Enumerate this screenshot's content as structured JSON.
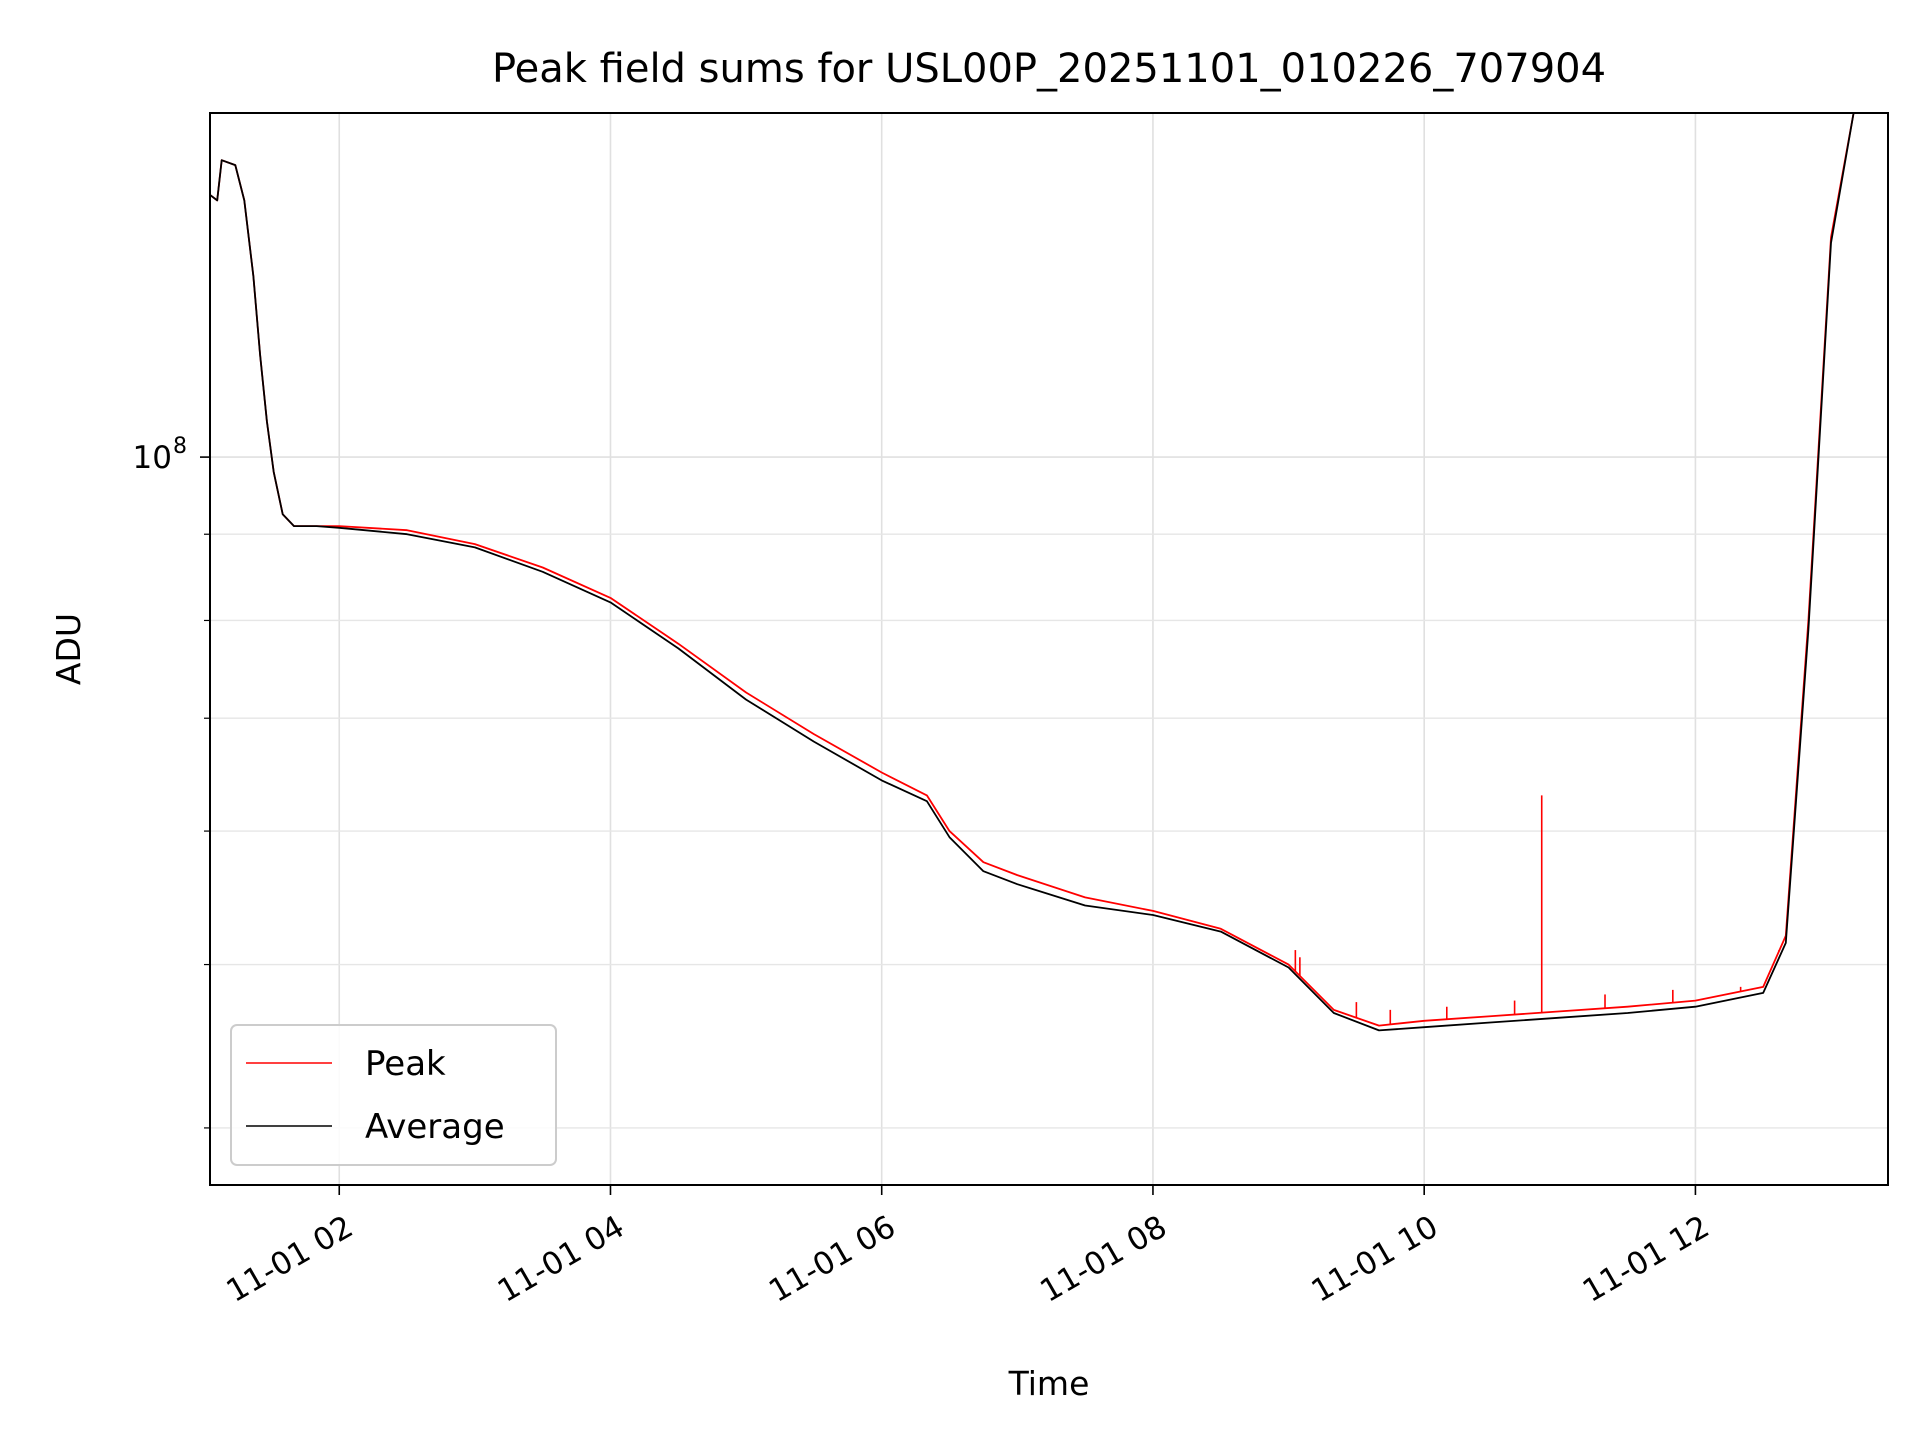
{
  "chart_data": {
    "type": "line",
    "title": "Peak field sums for USL00P_20251101_010226_707904",
    "xlabel": "Time",
    "ylabel": "ADU",
    "x_tick_labels": [
      "11-01 02",
      "11-01 04",
      "11-01 06",
      "11-01 08",
      "11-01 10",
      "11-01 12"
    ],
    "y_tick_label": {
      "base": "10",
      "exponent": "8"
    },
    "yscale": "log",
    "ylim": [
      37000000,
      160000000
    ],
    "grid": true,
    "legend_location": "lower-left",
    "series": [
      {
        "name": "Peak",
        "color": "#ff0000",
        "points": [
          [
            "11-01 01:03",
            143000000
          ],
          [
            "11-01 01:06",
            142000000
          ],
          [
            "11-01 01:08",
            150000000
          ],
          [
            "11-01 01:14",
            149000000
          ],
          [
            "11-01 01:18",
            142000000
          ],
          [
            "11-01 01:22",
            128000000
          ],
          [
            "11-01 01:25",
            115000000
          ],
          [
            "11-01 01:28",
            105000000
          ],
          [
            "11-01 01:31",
            98000000
          ],
          [
            "11-01 01:35",
            92500000
          ],
          [
            "11-01 01:40",
            91000000
          ],
          [
            "11-01 01:50",
            91000000
          ],
          [
            "11-01 02:00",
            91000000
          ],
          [
            "11-01 02:30",
            90500000
          ],
          [
            "11-01 03:00",
            88800000
          ],
          [
            "11-01 03:30",
            86000000
          ],
          [
            "11-01 04:00",
            82500000
          ],
          [
            "11-01 04:30",
            77500000
          ],
          [
            "11-01 05:00",
            72500000
          ],
          [
            "11-01 05:30",
            68500000
          ],
          [
            "11-01 06:00",
            65000000
          ],
          [
            "11-01 06:20",
            63000000
          ],
          [
            "11-01 06:30",
            60000000
          ],
          [
            "11-01 06:45",
            57500000
          ],
          [
            "11-01 07:00",
            56500000
          ],
          [
            "11-01 07:30",
            54800000
          ],
          [
            "11-01 08:00",
            53800000
          ],
          [
            "11-01 08:30",
            52500000
          ],
          [
            "11-01 09:00",
            50000000
          ],
          [
            "11-01 09:20",
            47000000
          ],
          [
            "11-01 09:40",
            46000000
          ],
          [
            "11-01 10:00",
            46300000
          ],
          [
            "11-01 10:30",
            46600000
          ],
          [
            "11-01 11:00",
            46900000
          ],
          [
            "11-01 11:30",
            47200000
          ],
          [
            "11-01 12:00",
            47600000
          ],
          [
            "11-01 12:30",
            48500000
          ],
          [
            "11-01 12:40",
            52000000
          ],
          [
            "11-01 12:50",
            80000000
          ],
          [
            "11-01 13:00",
            135000000
          ],
          [
            "11-01 13:10",
            160000000
          ]
        ],
        "spikes": [
          [
            "11-01 09:03",
            51000000
          ],
          [
            "11-01 09:05",
            50500000
          ],
          [
            "11-01 09:30",
            47500000
          ],
          [
            "11-01 09:45",
            47000000
          ],
          [
            "11-01 10:10",
            47200000
          ],
          [
            "11-01 10:40",
            47600000
          ],
          [
            "11-01 10:52",
            63000000
          ],
          [
            "11-01 11:20",
            48000000
          ],
          [
            "11-01 11:50",
            48300000
          ],
          [
            "11-01 12:20",
            48500000
          ],
          [
            "11-01 12:37",
            51000000
          ]
        ]
      },
      {
        "name": "Average",
        "color": "#000000",
        "points": [
          [
            "11-01 01:03",
            143000000
          ],
          [
            "11-01 01:06",
            142000000
          ],
          [
            "11-01 01:08",
            150000000
          ],
          [
            "11-01 01:14",
            149000000
          ],
          [
            "11-01 01:18",
            142000000
          ],
          [
            "11-01 01:22",
            128000000
          ],
          [
            "11-01 01:25",
            115000000
          ],
          [
            "11-01 01:28",
            105000000
          ],
          [
            "11-01 01:31",
            98000000
          ],
          [
            "11-01 01:35",
            92500000
          ],
          [
            "11-01 01:40",
            91000000
          ],
          [
            "11-01 01:50",
            91000000
          ],
          [
            "11-01 02:00",
            90800000
          ],
          [
            "11-01 02:30",
            90000000
          ],
          [
            "11-01 03:00",
            88400000
          ],
          [
            "11-01 03:30",
            85500000
          ],
          [
            "11-01 04:00",
            82000000
          ],
          [
            "11-01 04:30",
            77000000
          ],
          [
            "11-01 05:00",
            71800000
          ],
          [
            "11-01 05:30",
            67800000
          ],
          [
            "11-01 06:00",
            64300000
          ],
          [
            "11-01 06:20",
            62500000
          ],
          [
            "11-01 06:30",
            59500000
          ],
          [
            "11-01 06:45",
            56800000
          ],
          [
            "11-01 07:00",
            55800000
          ],
          [
            "11-01 07:30",
            54200000
          ],
          [
            "11-01 08:00",
            53500000
          ],
          [
            "11-01 08:30",
            52300000
          ],
          [
            "11-01 09:00",
            49800000
          ],
          [
            "11-01 09:20",
            46800000
          ],
          [
            "11-01 09:40",
            45700000
          ],
          [
            "11-01 10:00",
            45900000
          ],
          [
            "11-01 10:30",
            46200000
          ],
          [
            "11-01 11:00",
            46500000
          ],
          [
            "11-01 11:30",
            46800000
          ],
          [
            "11-01 12:00",
            47200000
          ],
          [
            "11-01 12:30",
            48100000
          ],
          [
            "11-01 12:40",
            51500000
          ],
          [
            "11-01 12:50",
            79000000
          ],
          [
            "11-01 13:00",
            134000000
          ],
          [
            "11-01 13:10",
            160000000
          ]
        ]
      }
    ]
  }
}
